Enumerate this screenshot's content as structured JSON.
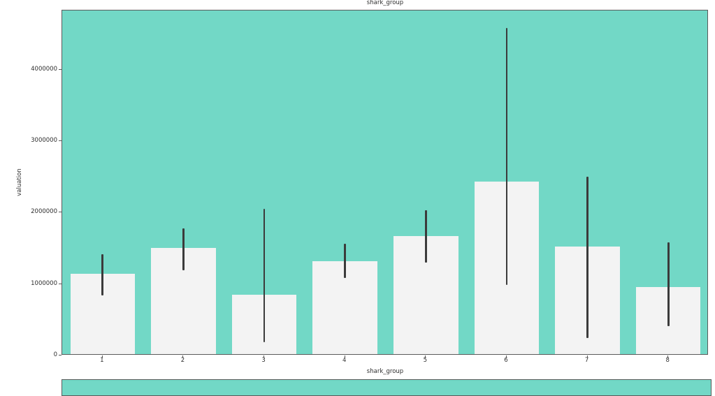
{
  "chart_data": {
    "type": "bar",
    "title": "shark_group",
    "xlabel": "shark_group",
    "ylabel": "valuation",
    "categories": [
      "1",
      "2",
      "3",
      "4",
      "5",
      "6",
      "7",
      "8"
    ],
    "values": [
      1120000,
      1490000,
      830000,
      1300000,
      1650000,
      2420000,
      1510000,
      940000
    ],
    "error_low": [
      840000,
      1190000,
      190000,
      1090000,
      1300000,
      990000,
      240000,
      410000
    ],
    "error_high": [
      1420000,
      1780000,
      2050000,
      1560000,
      2030000,
      4590000,
      2500000,
      1580000
    ],
    "ytick_values": [
      0,
      1000000,
      2000000,
      3000000,
      4000000
    ],
    "ytick_labels": [
      "0",
      "1000000",
      "2000000",
      "3000000",
      "4000000"
    ],
    "ylim": [
      0,
      4830000
    ],
    "grid": false,
    "legend": null,
    "bar_width_fraction": 0.8,
    "colors": {
      "plot_background": "#72d8c6",
      "bar_fill": "#f3f3f3",
      "error_bar": "#3b3b3b",
      "spine": "#5a5a5a",
      "text": "#2e2e2e",
      "figure_background": "#ffffff"
    },
    "partial_second_subplot_visible": true
  }
}
